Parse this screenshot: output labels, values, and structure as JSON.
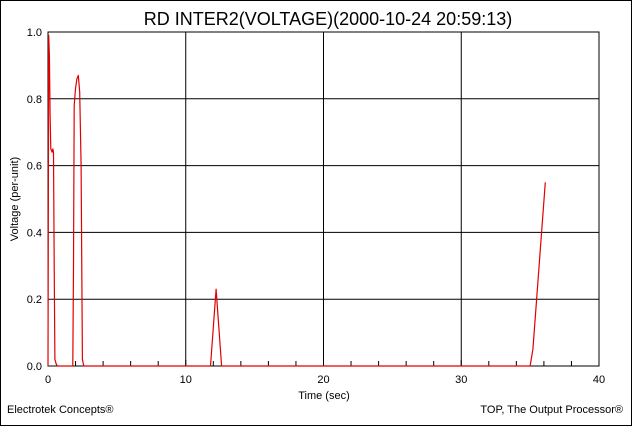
{
  "chart_data": {
    "type": "line",
    "title": "RD INTER2(VOLTAGE)(2000-10-24 20:59:13)",
    "xlabel": "Time (sec)",
    "ylabel": "Voltage (per-unit)",
    "xlim": [
      0,
      40
    ],
    "ylim": [
      0,
      1
    ],
    "x_ticks": [
      0,
      10,
      20,
      30,
      40
    ],
    "x_tick_labels": [
      "0",
      "10",
      "20",
      "30",
      "40"
    ],
    "y_ticks": [
      0,
      0.2,
      0.4,
      0.6,
      0.8,
      1.0
    ],
    "y_tick_labels": [
      "0.0",
      "0.2",
      "0.4",
      "0.6",
      "0.8",
      "1.0"
    ],
    "grid": true,
    "series": [
      {
        "color": "#e00000",
        "x": [
          0.0,
          0.05,
          0.1,
          0.15,
          0.2,
          0.3,
          0.35,
          0.4,
          0.45,
          0.5,
          0.6,
          0.7,
          0.8,
          1.0,
          1.5,
          1.8,
          1.85,
          1.9,
          2.0,
          2.1,
          2.2,
          2.3,
          2.4,
          2.5,
          2.6,
          3.0,
          5.0,
          8.0,
          11.0,
          11.8,
          12.2,
          12.6,
          13.0,
          20.0,
          30.0,
          35.0,
          35.2,
          36.1
        ],
        "y": [
          0.0,
          0.99,
          0.93,
          0.75,
          0.65,
          0.64,
          0.65,
          0.64,
          0.3,
          0.02,
          0.005,
          0.0,
          0.0,
          0.0,
          0.0,
          0.0,
          0.3,
          0.78,
          0.83,
          0.86,
          0.87,
          0.82,
          0.6,
          0.02,
          0.0,
          0.0,
          0.0,
          0.0,
          0.0,
          0.0,
          0.23,
          0.0,
          0.0,
          0.0,
          0.0,
          0.0,
          0.05,
          0.55
        ]
      }
    ]
  },
  "footer": {
    "left": "Electrotek Concepts®",
    "right": "TOP, The Output Processor®"
  }
}
